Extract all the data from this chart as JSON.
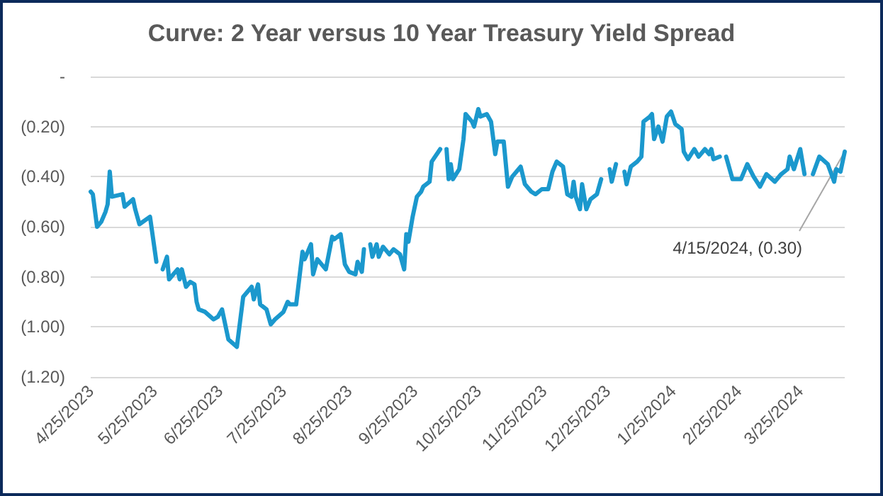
{
  "chart_data": {
    "type": "line",
    "title": "Curve: 2 Year versus 10 Year Treasury Yield Spread",
    "x": [
      "2023-04-25",
      "2023-04-26",
      "2023-04-28",
      "2023-04-30",
      "2023-05-02",
      "2023-05-03",
      "2023-05-04",
      "2023-05-05",
      "2023-05-10",
      "2023-05-11",
      "2023-05-15",
      "2023-05-16",
      "2023-05-18",
      "2023-05-23",
      "2023-05-26",
      "2023-05-27",
      "2023-05-29",
      "2023-05-31",
      "2023-06-01",
      "2023-06-05",
      "2023-06-06",
      "2023-06-07",
      "2023-06-09",
      "2023-06-11",
      "2023-06-13",
      "2023-06-14",
      "2023-06-15",
      "2023-06-18",
      "2023-06-22",
      "2023-06-24",
      "2023-06-26",
      "2023-06-28",
      "2023-06-29",
      "2023-07-03",
      "2023-07-06",
      "2023-07-10",
      "2023-07-11",
      "2023-07-13",
      "2023-07-14",
      "2023-07-17",
      "2023-07-19",
      "2023-07-21",
      "2023-07-25",
      "2023-07-27",
      "2023-07-28",
      "2023-07-31",
      "2023-08-03",
      "2023-08-04",
      "2023-08-07",
      "2023-08-08",
      "2023-08-10",
      "2023-08-14",
      "2023-08-17",
      "2023-08-18",
      "2023-08-21",
      "2023-08-23",
      "2023-08-25",
      "2023-08-28",
      "2023-08-29",
      "2023-08-31",
      "2023-09-01",
      "2023-09-02",
      "2023-09-04",
      "2023-09-05",
      "2023-09-07",
      "2023-09-08",
      "2023-09-10",
      "2023-09-13",
      "2023-09-15",
      "2023-09-18",
      "2023-09-20",
      "2023-09-21",
      "2023-09-22",
      "2023-09-24",
      "2023-09-26",
      "2023-09-28",
      "2023-09-29",
      "2023-10-02",
      "2023-10-03",
      "2023-10-07",
      "2023-10-08",
      "2023-10-10",
      "2023-10-11",
      "2023-10-12",
      "2023-10-13",
      "2023-10-16",
      "2023-10-18",
      "2023-10-19",
      "2023-10-22",
      "2023-10-23",
      "2023-10-25",
      "2023-10-26",
      "2023-10-29",
      "2023-10-31",
      "2023-11-02",
      "2023-11-03",
      "2023-11-06",
      "2023-11-08",
      "2023-11-10",
      "2023-11-14",
      "2023-11-16",
      "2023-11-19",
      "2023-11-21",
      "2023-11-24",
      "2023-11-27",
      "2023-11-29",
      "2023-12-01",
      "2023-12-04",
      "2023-12-06",
      "2023-12-08",
      "2023-12-09",
      "2023-12-10",
      "2023-12-12",
      "2023-12-13",
      "2023-12-15",
      "2023-12-17",
      "2023-12-20",
      "2023-12-22",
      "2023-12-24",
      "2023-12-26",
      "2023-12-27",
      "2023-12-29",
      "2023-12-31",
      "2024-01-02",
      "2024-01-03",
      "2024-01-05",
      "2024-01-08",
      "2024-01-10",
      "2024-01-11",
      "2024-01-14",
      "2024-01-15",
      "2024-01-16",
      "2024-01-18",
      "2024-01-20",
      "2024-01-22",
      "2024-01-24",
      "2024-01-26",
      "2024-01-29",
      "2024-01-30",
      "2024-02-01",
      "2024-02-04",
      "2024-02-06",
      "2024-02-09",
      "2024-02-11",
      "2024-02-12",
      "2024-02-13",
      "2024-02-16",
      "2024-02-17",
      "2024-02-19",
      "2024-02-22",
      "2024-02-26",
      "2024-02-29",
      "2024-03-03",
      "2024-03-06",
      "2024-03-09",
      "2024-03-13",
      "2024-03-16",
      "2024-03-19",
      "2024-03-20",
      "2024-03-22",
      "2024-03-25",
      "2024-03-27",
      "2024-03-29",
      "2024-03-31",
      "2024-04-03",
      "2024-04-07",
      "2024-04-10",
      "2024-04-11",
      "2024-04-13",
      "2024-04-15"
    ],
    "series": [
      {
        "color": "#1b98cd",
        "values": [
          -0.46,
          -0.47,
          -0.6,
          -0.58,
          -0.54,
          -0.51,
          -0.38,
          -0.48,
          -0.47,
          -0.52,
          -0.49,
          -0.53,
          -0.59,
          -0.56,
          -0.74,
          null,
          -0.77,
          -0.72,
          -0.81,
          -0.77,
          -0.81,
          -0.77,
          -0.84,
          -0.82,
          -0.83,
          -0.9,
          -0.93,
          -0.94,
          -0.97,
          -0.96,
          -0.93,
          -1.01,
          -1.05,
          -1.08,
          -0.88,
          -0.84,
          -0.89,
          -0.83,
          -0.91,
          -0.93,
          -0.99,
          -0.97,
          -0.94,
          -0.9,
          -0.91,
          -0.91,
          -0.7,
          -0.73,
          -0.67,
          -0.79,
          -0.73,
          -0.77,
          -0.64,
          -0.65,
          -0.63,
          -0.75,
          -0.78,
          -0.79,
          -0.74,
          -0.78,
          -0.69,
          null,
          -0.67,
          -0.72,
          -0.67,
          -0.72,
          -0.68,
          -0.71,
          -0.69,
          -0.71,
          -0.77,
          -0.63,
          -0.66,
          -0.56,
          -0.48,
          -0.46,
          -0.44,
          -0.42,
          -0.34,
          -0.29,
          null,
          -0.29,
          -0.41,
          -0.35,
          -0.41,
          -0.37,
          -0.25,
          -0.15,
          -0.18,
          -0.2,
          -0.13,
          -0.16,
          -0.15,
          -0.18,
          -0.31,
          -0.26,
          -0.26,
          -0.44,
          -0.4,
          -0.36,
          -0.43,
          -0.46,
          -0.47,
          -0.45,
          -0.45,
          -0.38,
          -0.34,
          -0.36,
          -0.47,
          -0.48,
          -0.42,
          -0.48,
          -0.53,
          -0.43,
          -0.53,
          -0.49,
          -0.47,
          -0.41,
          null,
          -0.37,
          -0.42,
          -0.35,
          null,
          -0.38,
          -0.43,
          -0.36,
          -0.34,
          -0.32,
          -0.18,
          -0.16,
          -0.15,
          -0.25,
          -0.2,
          -0.26,
          -0.16,
          -0.14,
          -0.19,
          -0.21,
          -0.3,
          -0.33,
          -0.29,
          -0.32,
          -0.29,
          -0.31,
          -0.29,
          -0.33,
          -0.32,
          null,
          -0.32,
          -0.41,
          -0.41,
          -0.35,
          -0.4,
          -0.44,
          -0.39,
          -0.42,
          -0.39,
          -0.37,
          -0.32,
          -0.37,
          -0.29,
          -0.39,
          null,
          -0.39,
          -0.32,
          -0.35,
          -0.42,
          -0.37,
          -0.38,
          -0.3
        ]
      }
    ],
    "xlim": [
      "2023-04-25",
      "2024-04-15"
    ],
    "xticks": [
      {
        "value": "2023-04-25",
        "label": "4/25/2023"
      },
      {
        "value": "2023-05-25",
        "label": "5/25/2023"
      },
      {
        "value": "2023-06-25",
        "label": "6/25/2023"
      },
      {
        "value": "2023-07-25",
        "label": "7/25/2023"
      },
      {
        "value": "2023-08-25",
        "label": "8/25/2023"
      },
      {
        "value": "2023-09-25",
        "label": "9/25/2023"
      },
      {
        "value": "2023-10-25",
        "label": "10/25/2023"
      },
      {
        "value": "2023-11-25",
        "label": "11/25/2023"
      },
      {
        "value": "2023-12-25",
        "label": "12/25/2023"
      },
      {
        "value": "2024-01-25",
        "label": "1/25/2024"
      },
      {
        "value": "2024-02-25",
        "label": "2/25/2024"
      },
      {
        "value": "2024-03-25",
        "label": "3/25/2024"
      }
    ],
    "ylim": [
      -1.2,
      0
    ],
    "yticks": [
      {
        "value": -1.2,
        "label": "(1.20)"
      },
      {
        "value": -1.0,
        "label": "(1.00)"
      },
      {
        "value": -0.8,
        "label": "(0.80)"
      },
      {
        "value": -0.6,
        "label": "(0.60)"
      },
      {
        "value": -0.4,
        "label": "(0.40)"
      },
      {
        "value": -0.2,
        "label": "(0.20)"
      },
      {
        "value": 0,
        "label": "-"
      }
    ],
    "annotations": [
      {
        "text": "4/15/2024, (0.30)",
        "x": "2024-04-15",
        "y": -0.3
      }
    ],
    "grid": "y",
    "marker": "none",
    "line_style": "solid"
  }
}
